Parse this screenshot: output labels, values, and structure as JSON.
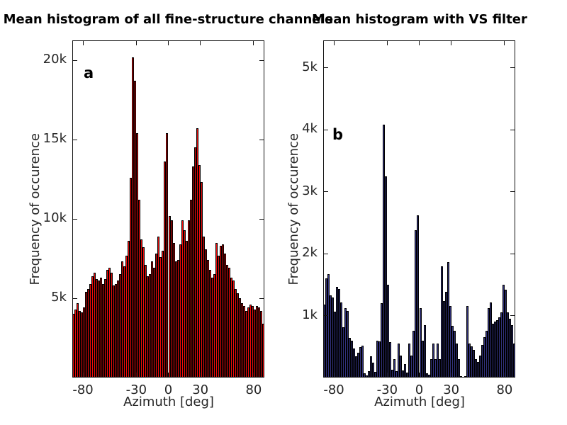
{
  "figure": {
    "background": "#ffffff",
    "axis_color": "#111111",
    "text_color": "#262626"
  },
  "chart_data": [
    {
      "type": "bar",
      "panel_label": "a",
      "title": "Mean histogram of all fine-structure channels",
      "xlabel": "Azimuth [deg]",
      "ylabel": "Frequency of occurence",
      "bar_color": "#f00a0a",
      "edge_color": "#000000",
      "x_start": -90,
      "bin_width_deg": 2,
      "xlim": [
        -90,
        90
      ],
      "ylim": [
        0,
        21250
      ],
      "grid": false,
      "xticks": [
        {
          "v": -80,
          "t": "-80"
        },
        {
          "v": -30,
          "t": "-30"
        },
        {
          "v": 0,
          "t": "0"
        },
        {
          "v": 30,
          "t": "30"
        },
        {
          "v": 80,
          "t": "80"
        }
      ],
      "yticks": [
        {
          "v": 5000,
          "t": "5k"
        },
        {
          "v": 10000,
          "t": "10k"
        },
        {
          "v": 15000,
          "t": "15k"
        },
        {
          "v": 20000,
          "t": "20k"
        }
      ],
      "values": [
        4000,
        4300,
        4700,
        4200,
        4100,
        4400,
        5400,
        5600,
        5900,
        6400,
        6600,
        6200,
        6100,
        6300,
        5900,
        6200,
        6800,
        6900,
        6600,
        5800,
        5900,
        6100,
        6500,
        7300,
        7000,
        7700,
        8600,
        12600,
        20200,
        18700,
        15400,
        11200,
        8700,
        8200,
        7100,
        6400,
        6500,
        7300,
        6900,
        7800,
        8900,
        7600,
        8000,
        13600,
        15400,
        10200,
        9900,
        8500,
        7300,
        7400,
        8400,
        9900,
        9300,
        8600,
        9900,
        11200,
        13300,
        14500,
        15700,
        13400,
        12300,
        8900,
        8100,
        7400,
        6800,
        6300,
        6500,
        8500,
        7700,
        8300,
        8400,
        7800,
        7100,
        6900,
        6300,
        6100,
        5600,
        5300,
        5000,
        4700,
        4500,
        4200,
        4400,
        4600,
        4500,
        4300,
        4500,
        4400,
        4200,
        3400
      ]
    },
    {
      "type": "bar",
      "panel_label": "b",
      "title": "Mean histogram with VS filter",
      "xlabel": "Azimuth [deg]",
      "ylabel": "Frequency of occurence",
      "bar_color": "#32327e",
      "edge_color": "#000000",
      "x_start": -90,
      "bin_width_deg": 2,
      "xlim": [
        -90,
        90
      ],
      "ylim": [
        0,
        5440
      ],
      "grid": false,
      "xticks": [
        {
          "v": -80,
          "t": "-80"
        },
        {
          "v": -30,
          "t": "-30"
        },
        {
          "v": 0,
          "t": "0"
        },
        {
          "v": 30,
          "t": "30"
        },
        {
          "v": 80,
          "t": "80"
        }
      ],
      "yticks": [
        {
          "v": 1000,
          "t": "1k"
        },
        {
          "v": 2000,
          "t": "2k"
        },
        {
          "v": 3000,
          "t": "3k"
        },
        {
          "v": 4000,
          "t": "4k"
        },
        {
          "v": 5000,
          "t": "5k"
        }
      ],
      "values": [
        1180,
        1600,
        1670,
        1330,
        1290,
        1060,
        1460,
        1430,
        1210,
        810,
        1120,
        1080,
        640,
        600,
        470,
        340,
        400,
        490,
        510,
        70,
        40,
        100,
        340,
        240,
        90,
        600,
        580,
        1200,
        4080,
        3250,
        1500,
        570,
        130,
        300,
        100,
        550,
        350,
        120,
        220,
        80,
        550,
        350,
        750,
        2380,
        2620,
        1120,
        600,
        850,
        70,
        50,
        300,
        550,
        300,
        550,
        300,
        1790,
        1230,
        1380,
        1860,
        1150,
        830,
        750,
        550,
        300,
        20,
        10,
        20,
        1150,
        550,
        500,
        450,
        300,
        250,
        350,
        530,
        650,
        750,
        1120,
        1210,
        870,
        900,
        930,
        970,
        1050,
        1500,
        1420,
        1050,
        950,
        850,
        550
      ]
    }
  ]
}
